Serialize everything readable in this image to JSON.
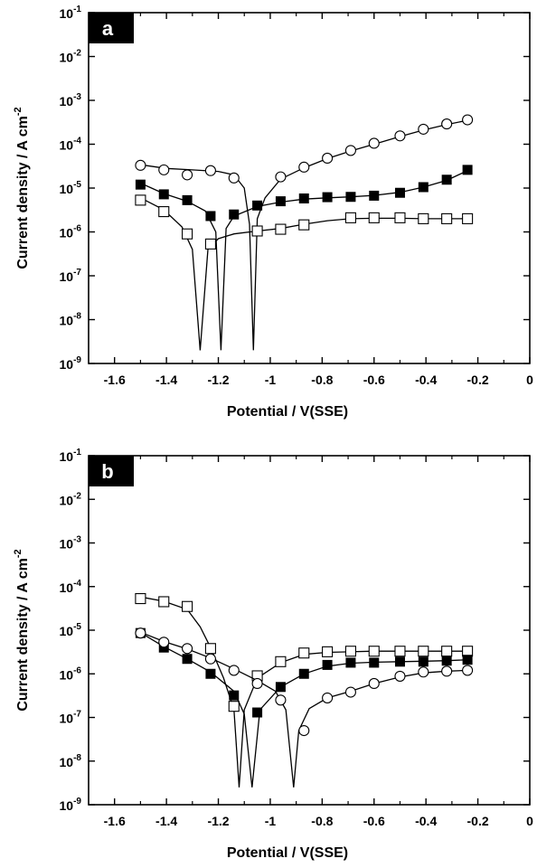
{
  "chart_data": [
    {
      "type": "scatter",
      "panel_label": "a",
      "xlabel": "Potential / V(SSE)",
      "ylabel": "Current density / A cm",
      "ylabel_superscript": "-2",
      "xlim": [
        -1.7,
        0
      ],
      "ylim": [
        1e-09,
        0.1
      ],
      "yscale": "log",
      "xticks": [
        {
          "v": -1.6,
          "label": "-1.6"
        },
        {
          "v": -1.4,
          "label": "-1.4"
        },
        {
          "v": -1.2,
          "label": "-1.2"
        },
        {
          "v": -1.0,
          "label": "-1"
        },
        {
          "v": -0.8,
          "label": "-0.8"
        },
        {
          "v": -0.6,
          "label": "-0.6"
        },
        {
          "v": -0.4,
          "label": "-0.4"
        },
        {
          "v": -0.2,
          "label": "-0.2"
        },
        {
          "v": 0,
          "label": "0"
        }
      ],
      "yticks": [
        {
          "exp": -1,
          "base": "10",
          "sup": "-1"
        },
        {
          "exp": -2,
          "base": "10",
          "sup": "-2"
        },
        {
          "exp": -3,
          "base": "10",
          "sup": "-3"
        },
        {
          "exp": -4,
          "base": "10",
          "sup": "-4"
        },
        {
          "exp": -5,
          "base": "10",
          "sup": "-5"
        },
        {
          "exp": -6,
          "base": "10",
          "sup": "-6"
        },
        {
          "exp": -7,
          "base": "10",
          "sup": "-7"
        },
        {
          "exp": -8,
          "base": "10",
          "sup": "-8"
        },
        {
          "exp": -9,
          "base": "10",
          "sup": "-9"
        }
      ],
      "series": [
        {
          "marker": "open-circle",
          "points": [
            [
              -1.5,
              3.3e-05
            ],
            [
              -1.41,
              2.6e-05
            ],
            [
              -1.32,
              2e-05
            ],
            [
              -1.23,
              2.5e-05
            ],
            [
              -1.14,
              1.7e-05
            ],
            [
              -0.96,
              1.8e-05
            ],
            [
              -0.87,
              3e-05
            ],
            [
              -0.78,
              4.8e-05
            ],
            [
              -0.69,
              7.2e-05
            ],
            [
              -0.6,
              0.000105
            ],
            [
              -0.5,
              0.000155
            ],
            [
              -0.41,
              0.00022
            ],
            [
              -0.32,
              0.00029
            ],
            [
              -0.24,
              0.00036
            ]
          ],
          "fit": [
            [
              -1.5,
              3.4e-05
            ],
            [
              -1.4,
              2.8e-05
            ],
            [
              -1.3,
              2.6e-05
            ],
            [
              -1.2,
              2.4e-05
            ],
            [
              -1.14,
              2e-05
            ],
            [
              -1.1,
              1e-05
            ],
            [
              -1.08,
              1.5e-06
            ],
            [
              -1.065,
              2e-09
            ],
            [
              -1.05,
              2e-06
            ],
            [
              -1.02,
              6e-06
            ],
            [
              -0.96,
              1.6e-05
            ],
            [
              -0.87,
              2.9e-05
            ],
            [
              -0.78,
              4.7e-05
            ],
            [
              -0.69,
              7e-05
            ],
            [
              -0.6,
              0.0001
            ],
            [
              -0.5,
              0.00015
            ],
            [
              -0.41,
              0.00021
            ],
            [
              -0.32,
              0.00028
            ],
            [
              -0.24,
              0.00035
            ]
          ]
        },
        {
          "marker": "filled-square",
          "points": [
            [
              -1.5,
              1.2e-05
            ],
            [
              -1.41,
              7.2e-06
            ],
            [
              -1.32,
              5.3e-06
            ],
            [
              -1.23,
              2.3e-06
            ],
            [
              -1.14,
              2.5e-06
            ],
            [
              -1.05,
              4e-06
            ],
            [
              -0.96,
              5e-06
            ],
            [
              -0.87,
              5.8e-06
            ],
            [
              -0.78,
              6.2e-06
            ],
            [
              -0.69,
              6.3e-06
            ],
            [
              -0.6,
              6.7e-06
            ],
            [
              -0.5,
              7.8e-06
            ],
            [
              -0.41,
              1.05e-05
            ],
            [
              -0.32,
              1.55e-05
            ],
            [
              -0.24,
              2.6e-05
            ]
          ],
          "fit": [
            [
              -1.5,
              1.3e-05
            ],
            [
              -1.41,
              7.5e-06
            ],
            [
              -1.32,
              5e-06
            ],
            [
              -1.25,
              3e-06
            ],
            [
              -1.21,
              1e-06
            ],
            [
              -1.19,
              2e-09
            ],
            [
              -1.17,
              1.2e-06
            ],
            [
              -1.14,
              2.3e-06
            ],
            [
              -1.05,
              3.8e-06
            ],
            [
              -0.96,
              4.8e-06
            ],
            [
              -0.87,
              5.6e-06
            ],
            [
              -0.78,
              6e-06
            ],
            [
              -0.69,
              6.3e-06
            ],
            [
              -0.6,
              6.8e-06
            ],
            [
              -0.5,
              8e-06
            ],
            [
              -0.41,
              1.05e-05
            ],
            [
              -0.32,
              1.5e-05
            ],
            [
              -0.24,
              2.5e-05
            ]
          ]
        },
        {
          "marker": "open-square",
          "points": [
            [
              -1.5,
              5.3e-06
            ],
            [
              -1.41,
              2.9e-06
            ],
            [
              -1.32,
              9e-07
            ],
            [
              -1.23,
              5.3e-07
            ],
            [
              -1.05,
              1.05e-06
            ],
            [
              -0.96,
              1.15e-06
            ],
            [
              -0.87,
              1.45e-06
            ],
            [
              -0.69,
              2.1e-06
            ],
            [
              -0.6,
              2.1e-06
            ],
            [
              -0.5,
              2.1e-06
            ],
            [
              -0.41,
              2e-06
            ],
            [
              -0.32,
              2e-06
            ],
            [
              -0.24,
              2e-06
            ]
          ],
          "fit": [
            [
              -1.5,
              6e-06
            ],
            [
              -1.41,
              3.2e-06
            ],
            [
              -1.34,
              1.3e-06
            ],
            [
              -1.3,
              4e-07
            ],
            [
              -1.27,
              2e-09
            ],
            [
              -1.24,
              4e-07
            ],
            [
              -1.2,
              7e-07
            ],
            [
              -1.14,
              9e-07
            ],
            [
              -1.05,
              1.05e-06
            ],
            [
              -0.96,
              1.2e-06
            ],
            [
              -0.87,
              1.5e-06
            ],
            [
              -0.78,
              1.8e-06
            ],
            [
              -0.69,
              2e-06
            ],
            [
              -0.6,
              2.05e-06
            ],
            [
              -0.5,
              2.05e-06
            ],
            [
              -0.41,
              2e-06
            ],
            [
              -0.32,
              2e-06
            ],
            [
              -0.24,
              2e-06
            ]
          ]
        }
      ]
    },
    {
      "type": "scatter",
      "panel_label": "b",
      "xlabel": "Potential / V(SSE)",
      "ylabel": "Current density / A cm",
      "ylabel_superscript": "-2",
      "xlim": [
        -1.7,
        0
      ],
      "ylim": [
        1e-09,
        0.1
      ],
      "yscale": "log",
      "xticks": [
        {
          "v": -1.6,
          "label": "-1.6"
        },
        {
          "v": -1.4,
          "label": "-1.4"
        },
        {
          "v": -1.2,
          "label": "-1.2"
        },
        {
          "v": -1.0,
          "label": "-1"
        },
        {
          "v": -0.8,
          "label": "-0.8"
        },
        {
          "v": -0.6,
          "label": "-0.6"
        },
        {
          "v": -0.4,
          "label": "-0.4"
        },
        {
          "v": -0.2,
          "label": "-0.2"
        },
        {
          "v": 0,
          "label": "0"
        }
      ],
      "yticks": [
        {
          "exp": -1,
          "base": "10",
          "sup": "-1"
        },
        {
          "exp": -2,
          "base": "10",
          "sup": "-2"
        },
        {
          "exp": -3,
          "base": "10",
          "sup": "-3"
        },
        {
          "exp": -4,
          "base": "10",
          "sup": "-4"
        },
        {
          "exp": -5,
          "base": "10",
          "sup": "-5"
        },
        {
          "exp": -6,
          "base": "10",
          "sup": "-6"
        },
        {
          "exp": -7,
          "base": "10",
          "sup": "-7"
        },
        {
          "exp": -8,
          "base": "10",
          "sup": "-8"
        },
        {
          "exp": -9,
          "base": "10",
          "sup": "-9"
        }
      ],
      "series": [
        {
          "marker": "open-square",
          "points": [
            [
              -1.5,
              5.3e-05
            ],
            [
              -1.41,
              4.5e-05
            ],
            [
              -1.32,
              3.5e-05
            ],
            [
              -1.23,
              3.8e-06
            ],
            [
              -1.14,
              1.8e-07
            ],
            [
              -1.05,
              9e-07
            ],
            [
              -0.96,
              1.9e-06
            ],
            [
              -0.87,
              3e-06
            ],
            [
              -0.78,
              3.2e-06
            ],
            [
              -0.69,
              3.3e-06
            ],
            [
              -0.6,
              3.3e-06
            ],
            [
              -0.5,
              3.3e-06
            ],
            [
              -0.41,
              3.3e-06
            ],
            [
              -0.32,
              3.3e-06
            ],
            [
              -0.24,
              3.3e-06
            ]
          ],
          "fit": [
            [
              -1.5,
              5.8e-05
            ],
            [
              -1.41,
              4.6e-05
            ],
            [
              -1.32,
              3e-05
            ],
            [
              -1.27,
              1.2e-05
            ],
            [
              -1.23,
              4e-06
            ],
            [
              -1.18,
              8e-07
            ],
            [
              -1.14,
              1.5e-07
            ],
            [
              -1.12,
              2.5e-09
            ],
            [
              -1.1,
              1.5e-07
            ],
            [
              -1.05,
              8e-07
            ],
            [
              -0.96,
              1.8e-06
            ],
            [
              -0.87,
              2.8e-06
            ],
            [
              -0.78,
              3.1e-06
            ],
            [
              -0.6,
              3.3e-06
            ],
            [
              -0.4,
              3.3e-06
            ],
            [
              -0.24,
              3.3e-06
            ]
          ]
        },
        {
          "marker": "filled-square",
          "points": [
            [
              -1.5,
              8.6e-06
            ],
            [
              -1.41,
              4e-06
            ],
            [
              -1.32,
              2.2e-06
            ],
            [
              -1.23,
              1e-06
            ],
            [
              -1.14,
              3.2e-07
            ],
            [
              -1.05,
              1.3e-07
            ],
            [
              -0.96,
              5e-07
            ],
            [
              -0.87,
              1e-06
            ],
            [
              -0.78,
              1.6e-06
            ],
            [
              -0.69,
              1.8e-06
            ],
            [
              -0.6,
              1.8e-06
            ],
            [
              -0.5,
              1.9e-06
            ],
            [
              -0.41,
              1.9e-06
            ],
            [
              -0.32,
              2e-06
            ],
            [
              -0.24,
              2.1e-06
            ]
          ],
          "fit": [
            [
              -1.5,
              8.8e-06
            ],
            [
              -1.41,
              4.2e-06
            ],
            [
              -1.32,
              2.2e-06
            ],
            [
              -1.23,
              1.1e-06
            ],
            [
              -1.14,
              4e-07
            ],
            [
              -1.1,
              1.2e-07
            ],
            [
              -1.07,
              2.5e-09
            ],
            [
              -1.04,
              1.5e-07
            ],
            [
              -0.96,
              5e-07
            ],
            [
              -0.87,
              1e-06
            ],
            [
              -0.78,
              1.5e-06
            ],
            [
              -0.69,
              1.75e-06
            ],
            [
              -0.6,
              1.85e-06
            ],
            [
              -0.5,
              1.9e-06
            ],
            [
              -0.41,
              1.95e-06
            ],
            [
              -0.32,
              2e-06
            ],
            [
              -0.24,
              2.1e-06
            ]
          ]
        },
        {
          "marker": "open-circle",
          "points": [
            [
              -1.5,
              8.6e-06
            ],
            [
              -1.41,
              5.3e-06
            ],
            [
              -1.32,
              3.8e-06
            ],
            [
              -1.23,
              2.2e-06
            ],
            [
              -1.14,
              1.2e-06
            ],
            [
              -1.05,
              6e-07
            ],
            [
              -0.96,
              2.5e-07
            ],
            [
              -0.87,
              5e-08
            ],
            [
              -0.78,
              2.8e-07
            ],
            [
              -0.69,
              3.8e-07
            ],
            [
              -0.6,
              6e-07
            ],
            [
              -0.5,
              8.8e-07
            ],
            [
              -0.41,
              1.1e-06
            ],
            [
              -0.32,
              1.15e-06
            ],
            [
              -0.24,
              1.2e-06
            ]
          ],
          "fit": [
            [
              -1.5,
              9e-06
            ],
            [
              -1.41,
              5.5e-06
            ],
            [
              -1.32,
              3.7e-06
            ],
            [
              -1.23,
              2.3e-06
            ],
            [
              -1.14,
              1.3e-06
            ],
            [
              -1.05,
              7e-07
            ],
            [
              -0.98,
              4e-07
            ],
            [
              -0.94,
              1.5e-07
            ],
            [
              -0.91,
              2.5e-09
            ],
            [
              -0.89,
              5e-08
            ],
            [
              -0.85,
              1.6e-07
            ],
            [
              -0.78,
              2.8e-07
            ],
            [
              -0.69,
              4e-07
            ],
            [
              -0.6,
              6e-07
            ],
            [
              -0.5,
              8.5e-07
            ],
            [
              -0.41,
              1.05e-06
            ],
            [
              -0.32,
              1.15e-06
            ],
            [
              -0.24,
              1.2e-06
            ]
          ]
        }
      ]
    }
  ]
}
